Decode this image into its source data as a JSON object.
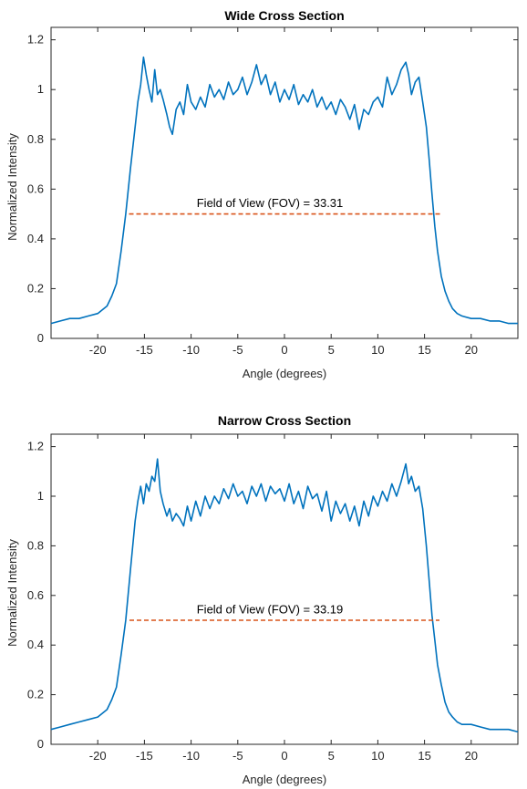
{
  "chart_data": [
    {
      "type": "line",
      "title": "Wide Cross Section",
      "xlabel": "Angle (degrees)",
      "ylabel": "Normalized Intensity",
      "xlim": [
        -25,
        25
      ],
      "ylim": [
        0,
        1.25
      ],
      "xticks": [
        -20,
        -15,
        -10,
        -5,
        0,
        5,
        10,
        15,
        20
      ],
      "yticks": [
        0,
        0.2,
        0.4,
        0.6,
        0.8,
        1,
        1.2
      ],
      "xtick_labels": [
        "-20",
        "-15",
        "-10",
        "-5",
        "0",
        "5",
        "10",
        "15",
        "20"
      ],
      "ytick_labels": [
        "0",
        "0.2",
        "0.4",
        "0.6",
        "0.8",
        "1",
        "1.2"
      ],
      "grid": false,
      "series": [
        {
          "color": "#0072BD",
          "x": [
            -25,
            -24,
            -23,
            -22,
            -21,
            -20,
            -19,
            -18.5,
            -18,
            -17.5,
            -17,
            -16.5,
            -16,
            -15.7,
            -15.4,
            -15.1,
            -14.8,
            -14.5,
            -14.2,
            -13.9,
            -13.6,
            -13.3,
            -13,
            -12.6,
            -12.3,
            -12,
            -11.6,
            -11.2,
            -10.8,
            -10.4,
            -10,
            -9.5,
            -9,
            -8.5,
            -8,
            -7.5,
            -7,
            -6.5,
            -6,
            -5.5,
            -5,
            -4.5,
            -4,
            -3.5,
            -3,
            -2.5,
            -2,
            -1.5,
            -1,
            -0.5,
            0,
            0.5,
            1,
            1.5,
            2,
            2.5,
            3,
            3.5,
            4,
            4.5,
            5,
            5.5,
            6,
            6.5,
            7,
            7.5,
            8,
            8.5,
            9,
            9.5,
            10,
            10.5,
            11,
            11.5,
            12,
            12.5,
            13,
            13.3,
            13.6,
            14,
            14.4,
            14.8,
            15.2,
            15.5,
            15.8,
            16.1,
            16.4,
            16.8,
            17.2,
            17.6,
            18,
            18.5,
            19,
            20,
            21,
            22,
            23,
            24,
            25
          ],
          "y": [
            0.06,
            0.07,
            0.08,
            0.08,
            0.09,
            0.1,
            0.13,
            0.17,
            0.22,
            0.35,
            0.5,
            0.68,
            0.85,
            0.95,
            1.02,
            1.13,
            1.06,
            1.0,
            0.95,
            1.08,
            0.98,
            1.0,
            0.96,
            0.9,
            0.85,
            0.82,
            0.92,
            0.95,
            0.9,
            1.02,
            0.95,
            0.92,
            0.97,
            0.93,
            1.02,
            0.97,
            1.0,
            0.96,
            1.03,
            0.98,
            1.0,
            1.05,
            0.98,
            1.03,
            1.1,
            1.02,
            1.06,
            0.98,
            1.03,
            0.95,
            1.0,
            0.96,
            1.02,
            0.94,
            0.98,
            0.95,
            1.0,
            0.93,
            0.97,
            0.92,
            0.95,
            0.9,
            0.96,
            0.93,
            0.88,
            0.94,
            0.84,
            0.92,
            0.9,
            0.95,
            0.97,
            0.93,
            1.05,
            0.98,
            1.02,
            1.08,
            1.11,
            1.06,
            0.98,
            1.03,
            1.05,
            0.95,
            0.85,
            0.72,
            0.58,
            0.45,
            0.35,
            0.25,
            0.19,
            0.15,
            0.12,
            0.1,
            0.09,
            0.08,
            0.08,
            0.07,
            0.07,
            0.06,
            0.06
          ]
        },
        {
          "color": "#D95319",
          "dashed": true,
          "x": [
            -16.65,
            16.65
          ],
          "y": [
            0.5,
            0.5
          ]
        }
      ],
      "annotation": {
        "text": "Field of View (FOV) = 33.31",
        "x": -9.4,
        "y": 0.52
      }
    },
    {
      "type": "line",
      "title": "Narrow Cross Section",
      "xlabel": "Angle (degrees)",
      "ylabel": "Normalized Intensity",
      "xlim": [
        -25,
        25
      ],
      "ylim": [
        0,
        1.25
      ],
      "xticks": [
        -20,
        -15,
        -10,
        -5,
        0,
        5,
        10,
        15,
        20
      ],
      "yticks": [
        0,
        0.2,
        0.4,
        0.6,
        0.8,
        1,
        1.2
      ],
      "xtick_labels": [
        "-20",
        "-15",
        "-10",
        "-5",
        "0",
        "5",
        "10",
        "15",
        "20"
      ],
      "ytick_labels": [
        "0",
        "0.2",
        "0.4",
        "0.6",
        "0.8",
        "1",
        "1.2"
      ],
      "grid": false,
      "series": [
        {
          "color": "#0072BD",
          "x": [
            -25,
            -24,
            -23,
            -22,
            -21,
            -20,
            -19,
            -18.5,
            -18,
            -17.5,
            -17,
            -16.5,
            -16,
            -15.7,
            -15.4,
            -15.1,
            -14.8,
            -14.5,
            -14.2,
            -13.9,
            -13.6,
            -13.3,
            -13,
            -12.6,
            -12.3,
            -12,
            -11.6,
            -11.2,
            -10.8,
            -10.4,
            -10,
            -9.5,
            -9,
            -8.5,
            -8,
            -7.5,
            -7,
            -6.5,
            -6,
            -5.5,
            -5,
            -4.5,
            -4,
            -3.5,
            -3,
            -2.5,
            -2,
            -1.5,
            -1,
            -0.5,
            0,
            0.5,
            1,
            1.5,
            2,
            2.5,
            3,
            3.5,
            4,
            4.5,
            5,
            5.5,
            6,
            6.5,
            7,
            7.5,
            8,
            8.5,
            9,
            9.5,
            10,
            10.5,
            11,
            11.5,
            12,
            12.5,
            13,
            13.3,
            13.6,
            14,
            14.4,
            14.8,
            15.2,
            15.5,
            15.8,
            16.1,
            16.4,
            16.8,
            17.2,
            17.6,
            18,
            18.5,
            19,
            20,
            21,
            22,
            23,
            24,
            25
          ],
          "y": [
            0.06,
            0.07,
            0.08,
            0.09,
            0.1,
            0.11,
            0.14,
            0.18,
            0.23,
            0.36,
            0.5,
            0.7,
            0.9,
            0.98,
            1.04,
            0.97,
            1.05,
            1.02,
            1.08,
            1.06,
            1.15,
            1.02,
            0.97,
            0.92,
            0.95,
            0.9,
            0.93,
            0.91,
            0.88,
            0.96,
            0.9,
            0.98,
            0.92,
            1.0,
            0.95,
            1.0,
            0.97,
            1.03,
            0.99,
            1.05,
            1.0,
            1.02,
            0.97,
            1.04,
            1.0,
            1.05,
            0.98,
            1.04,
            1.01,
            1.03,
            0.98,
            1.05,
            0.97,
            1.02,
            0.95,
            1.04,
            0.99,
            1.01,
            0.94,
            1.02,
            0.9,
            0.98,
            0.93,
            0.97,
            0.9,
            0.96,
            0.88,
            0.98,
            0.92,
            1.0,
            0.96,
            1.02,
            0.98,
            1.05,
            1.0,
            1.06,
            1.13,
            1.05,
            1.08,
            1.02,
            1.04,
            0.95,
            0.8,
            0.66,
            0.52,
            0.42,
            0.32,
            0.24,
            0.17,
            0.13,
            0.11,
            0.09,
            0.08,
            0.08,
            0.07,
            0.06,
            0.06,
            0.06,
            0.05
          ]
        },
        {
          "color": "#D95319",
          "dashed": true,
          "x": [
            -16.6,
            16.6
          ],
          "y": [
            0.5,
            0.5
          ]
        }
      ],
      "annotation": {
        "text": "Field of View (FOV) = 33.19",
        "x": -9.4,
        "y": 0.52
      }
    }
  ]
}
